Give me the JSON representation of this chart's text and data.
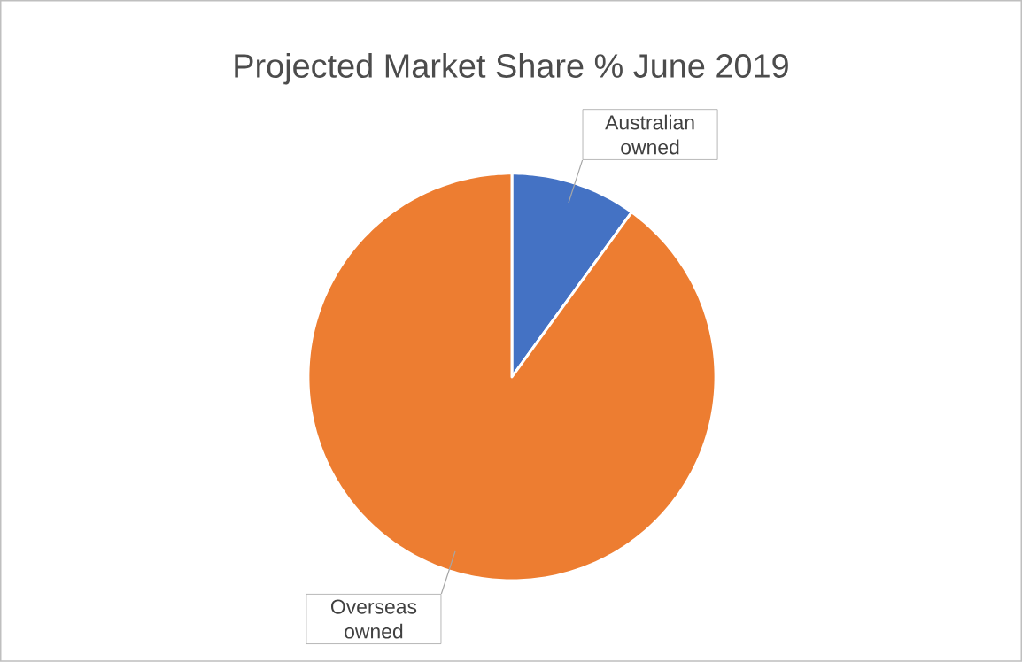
{
  "chart_data": {
    "type": "pie",
    "title": "Projected Market Share % June 2019",
    "categories": [
      "Australian owned",
      "Overseas owned"
    ],
    "values": [
      10,
      90
    ],
    "colors": [
      "#4472c4",
      "#ed7d31"
    ]
  }
}
